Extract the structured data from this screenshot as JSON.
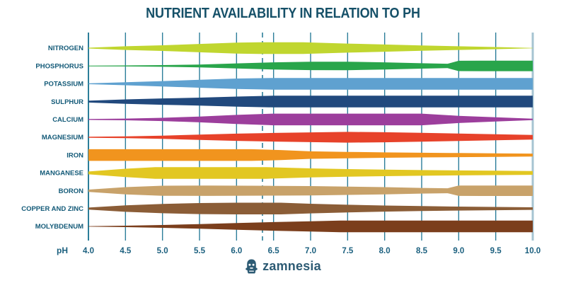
{
  "header": {
    "title": "NUTRIENT AVAILABILITY IN RELATION TO PH"
  },
  "footer": {
    "brand": "zamnesia",
    "icon": "zamnesia-emblem"
  },
  "axis": {
    "label": "pH",
    "ticks": [
      "4.0",
      "4.5",
      "5.0",
      "5.5",
      "6.0",
      "6.5",
      "7.0",
      "7.5",
      "8.0",
      "8.5",
      "9.0",
      "9.5",
      "10.0"
    ]
  },
  "colors": {
    "title": "#155068",
    "row_label": "#135a78",
    "tick_label": "#1a5f7e",
    "grid": "#2c7e99",
    "axis_line": "#2c7e99",
    "right_boundary": "#a6c4d2",
    "dashed_marker": "#2c7e99",
    "logo": "#2d5b74"
  },
  "chart_data": {
    "type": "area",
    "title": "NUTRIENT AVAILABILITY IN RELATION TO PH",
    "xlabel": "pH",
    "x_range": [
      4.0,
      10.0
    ],
    "x_ticks": [
      4.0,
      4.5,
      5.0,
      5.5,
      6.0,
      6.5,
      7.0,
      7.5,
      8.0,
      8.5,
      9.0,
      9.5,
      10.0
    ],
    "grid": true,
    "marker_line": {
      "ph": 6.35,
      "style": "dashed"
    },
    "value_note": "profile pairs are [pH, relative availability 0-1] shown as ribbon thickness",
    "series": [
      {
        "name": "NITROGEN",
        "color": "#c0d62f",
        "profile": [
          [
            4.0,
            0.06
          ],
          [
            4.5,
            0.32
          ],
          [
            5.0,
            0.48
          ],
          [
            5.5,
            0.72
          ],
          [
            6.0,
            0.94
          ],
          [
            6.3,
            1.0
          ],
          [
            6.9,
            1.0
          ],
          [
            7.5,
            0.78
          ],
          [
            8.0,
            0.62
          ],
          [
            8.5,
            0.46
          ],
          [
            9.0,
            0.32
          ],
          [
            9.5,
            0.18
          ],
          [
            10.0,
            0.03
          ]
        ]
      },
      {
        "name": "PHOSPHORUS",
        "color": "#29a54b",
        "profile": [
          [
            4.0,
            0.06
          ],
          [
            4.5,
            0.09
          ],
          [
            5.0,
            0.14
          ],
          [
            5.5,
            0.24
          ],
          [
            6.0,
            0.44
          ],
          [
            6.5,
            0.62
          ],
          [
            7.0,
            0.72
          ],
          [
            7.5,
            0.73
          ],
          [
            8.0,
            0.62
          ],
          [
            8.5,
            0.46
          ],
          [
            8.85,
            0.37
          ],
          [
            9.0,
            0.88
          ],
          [
            9.3,
            0.9
          ],
          [
            10.0,
            0.9
          ]
        ]
      },
      {
        "name": "POTASSIUM",
        "color": "#5fa1d0",
        "profile": [
          [
            4.0,
            0.07
          ],
          [
            4.5,
            0.26
          ],
          [
            5.0,
            0.46
          ],
          [
            5.5,
            0.68
          ],
          [
            6.0,
            0.9
          ],
          [
            6.5,
            1.0
          ],
          [
            10.0,
            1.0
          ]
        ]
      },
      {
        "name": "SULPHUR",
        "color": "#21497d",
        "profile": [
          [
            4.0,
            0.16
          ],
          [
            4.5,
            0.38
          ],
          [
            5.0,
            0.54
          ],
          [
            5.5,
            0.68
          ],
          [
            6.0,
            0.86
          ],
          [
            6.5,
            1.0
          ],
          [
            10.0,
            1.0
          ]
        ]
      },
      {
        "name": "CALCIUM",
        "color": "#9c3e9c",
        "profile": [
          [
            4.0,
            0.08
          ],
          [
            4.5,
            0.14
          ],
          [
            5.0,
            0.28
          ],
          [
            5.5,
            0.5
          ],
          [
            6.0,
            0.78
          ],
          [
            6.5,
            1.0
          ],
          [
            8.5,
            1.0
          ],
          [
            9.0,
            0.62
          ],
          [
            9.5,
            0.36
          ],
          [
            10.0,
            0.12
          ]
        ]
      },
      {
        "name": "MAGNESIUM",
        "color": "#e7422a",
        "profile": [
          [
            4.0,
            0.08
          ],
          [
            4.5,
            0.14
          ],
          [
            5.0,
            0.28
          ],
          [
            5.5,
            0.46
          ],
          [
            6.0,
            0.62
          ],
          [
            6.5,
            0.74
          ],
          [
            7.0,
            0.84
          ],
          [
            7.5,
            0.92
          ],
          [
            8.0,
            0.86
          ],
          [
            8.5,
            0.76
          ],
          [
            9.0,
            0.64
          ],
          [
            9.5,
            0.52
          ],
          [
            10.0,
            0.4
          ]
        ]
      },
      {
        "name": "IRON",
        "color": "#f1941e",
        "profile": [
          [
            4.0,
            1.0
          ],
          [
            6.2,
            1.0
          ],
          [
            6.6,
            0.86
          ],
          [
            7.0,
            0.64
          ],
          [
            7.5,
            0.54
          ],
          [
            8.0,
            0.46
          ],
          [
            8.5,
            0.4
          ],
          [
            9.0,
            0.35
          ],
          [
            9.5,
            0.3
          ],
          [
            10.0,
            0.26
          ]
        ]
      },
      {
        "name": "MANGANESE",
        "color": "#e2c722",
        "profile": [
          [
            4.0,
            0.24
          ],
          [
            4.5,
            0.72
          ],
          [
            4.9,
            1.0
          ],
          [
            6.4,
            1.0
          ],
          [
            7.0,
            0.78
          ],
          [
            7.5,
            0.66
          ],
          [
            8.0,
            0.56
          ],
          [
            8.5,
            0.48
          ],
          [
            9.0,
            0.42
          ],
          [
            9.5,
            0.37
          ],
          [
            10.0,
            0.33
          ]
        ]
      },
      {
        "name": "BORON",
        "color": "#c8a26a",
        "profile": [
          [
            4.0,
            0.2
          ],
          [
            4.5,
            0.62
          ],
          [
            5.0,
            0.86
          ],
          [
            5.6,
            0.88
          ],
          [
            6.5,
            0.84
          ],
          [
            7.0,
            0.8
          ],
          [
            7.5,
            0.72
          ],
          [
            8.0,
            0.62
          ],
          [
            8.5,
            0.48
          ],
          [
            8.85,
            0.42
          ],
          [
            9.0,
            0.88
          ],
          [
            9.3,
            0.9
          ],
          [
            10.0,
            0.9
          ]
        ]
      },
      {
        "name": "COPPER AND ZINC",
        "color": "#8b5d37",
        "profile": [
          [
            4.0,
            0.17
          ],
          [
            4.5,
            0.56
          ],
          [
            5.0,
            0.8
          ],
          [
            5.5,
            0.94
          ],
          [
            6.0,
            1.0
          ],
          [
            6.6,
            1.0
          ],
          [
            7.0,
            0.82
          ],
          [
            7.5,
            0.66
          ],
          [
            8.0,
            0.52
          ],
          [
            8.5,
            0.42
          ],
          [
            9.0,
            0.34
          ],
          [
            9.5,
            0.28
          ],
          [
            10.0,
            0.22
          ]
        ]
      },
      {
        "name": "MOLYBDENUM",
        "color": "#7b3e1c",
        "profile": [
          [
            4.0,
            0.05
          ],
          [
            4.5,
            0.12
          ],
          [
            5.0,
            0.24
          ],
          [
            5.5,
            0.4
          ],
          [
            6.0,
            0.58
          ],
          [
            6.5,
            0.74
          ],
          [
            7.0,
            0.88
          ],
          [
            7.4,
            1.0
          ],
          [
            10.0,
            1.0
          ]
        ]
      }
    ]
  }
}
